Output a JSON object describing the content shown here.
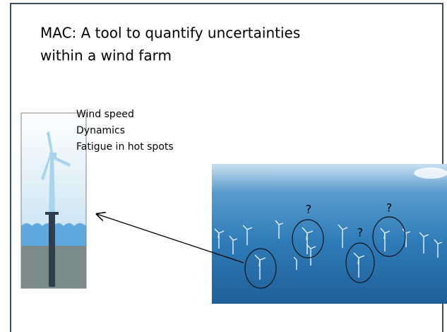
{
  "title": {
    "lines": [
      "MAC: A tool to quantify uncertainties",
      "within a wind farm"
    ]
  },
  "list": [
    "Wind speed",
    "Dynamics",
    "Fatigue in hot spots"
  ],
  "photo": {
    "marks": [
      "?",
      "?",
      "?"
    ]
  }
}
